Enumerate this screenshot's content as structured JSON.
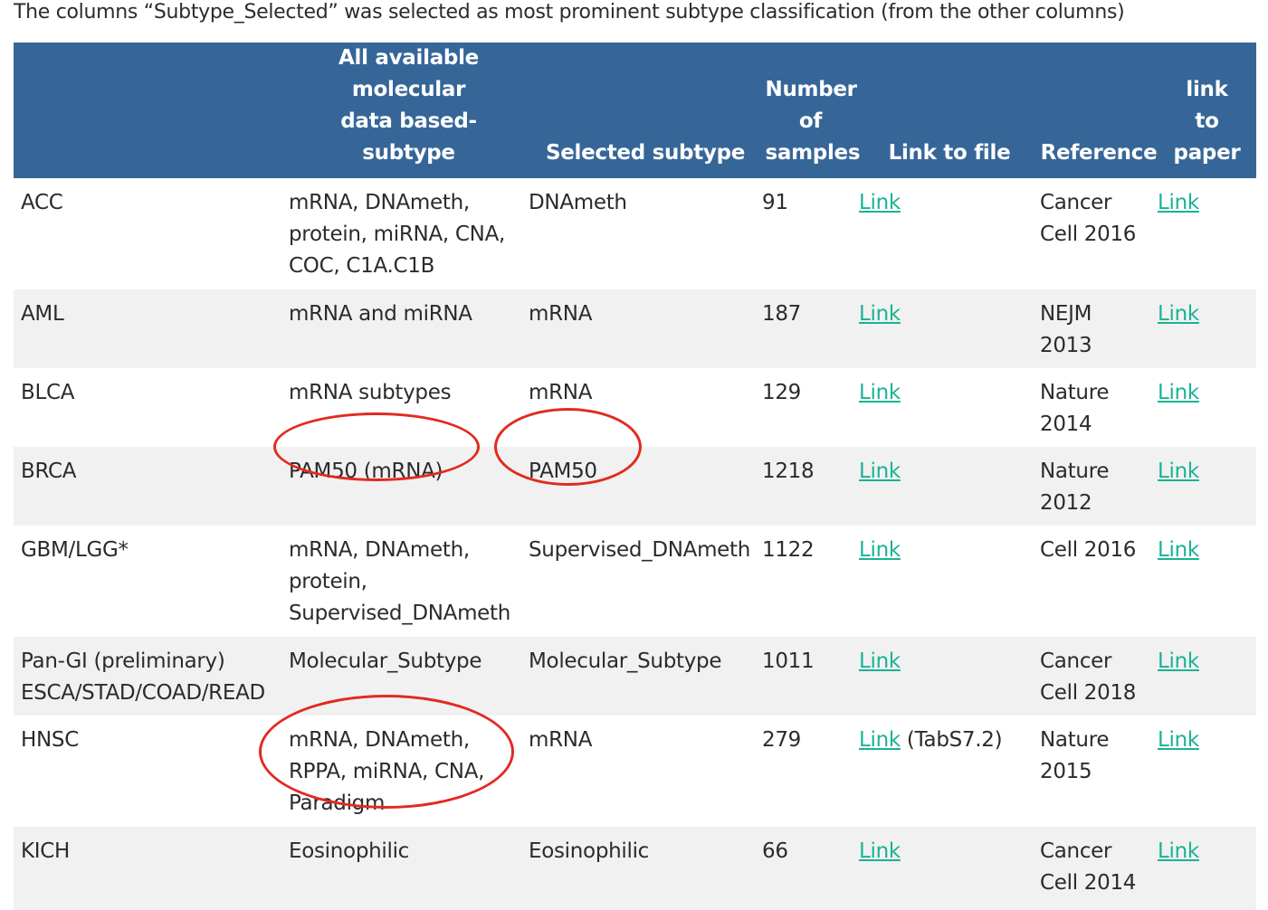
{
  "intro_text": "The columns “Subtype_Selected” was selected as most prominent subtype classification (from the other columns)",
  "table": {
    "headers": [
      "",
      "All available molecular data based-subtype",
      "Selected subtype",
      "Number of samples",
      "Link to file",
      "Reference",
      "link to paper"
    ],
    "rows": [
      {
        "cancer": "ACC",
        "available": "mRNA, DNAmeth, protein, miRNA, CNA, COC, C1A.C1B",
        "selected": "DNAmeth",
        "samples": "91",
        "file_link": "Link",
        "file_note": "",
        "reference": "Cancer Cell 2016",
        "paper_link": "Link"
      },
      {
        "cancer": "AML",
        "available": "mRNA and miRNA",
        "selected": "mRNA",
        "samples": "187",
        "file_link": "Link",
        "file_note": "",
        "reference": "NEJM 2013",
        "paper_link": "Link"
      },
      {
        "cancer": "BLCA",
        "available": "mRNA subtypes",
        "selected": "mRNA",
        "samples": "129",
        "file_link": "Link",
        "file_note": "",
        "reference": "Nature 2014",
        "paper_link": "Link"
      },
      {
        "cancer": "BRCA",
        "available": "PAM50 (mRNA)",
        "selected": "PAM50",
        "samples": "1218",
        "file_link": "Link",
        "file_note": "",
        "reference": "Nature 2012",
        "paper_link": "Link"
      },
      {
        "cancer": "GBM/LGG*",
        "available": "mRNA, DNAmeth, protein, Supervised_DNAmeth",
        "selected": "Supervised_DNAmeth",
        "samples": "1122",
        "file_link": "Link",
        "file_note": "",
        "reference": "Cell 2016",
        "paper_link": "Link"
      },
      {
        "cancer_line1": "Pan-GI (preliminary)",
        "cancer_line2": "ESCA/STAD/COAD/READ",
        "available": "Molecular_Subtype",
        "selected": "Molecular_Subtype",
        "samples": "1011",
        "file_link": "Link",
        "file_note": "",
        "reference": "Cancer Cell 2018",
        "paper_link": "Link"
      },
      {
        "cancer": "HNSC",
        "available": "mRNA, DNAmeth, RPPA, miRNA, CNA, Paradigm",
        "selected": "mRNA",
        "samples": "279",
        "file_link": "Link",
        "file_note": "(TabS7.2)",
        "reference": "Nature 2015",
        "paper_link": "Link"
      },
      {
        "cancer": "KICH",
        "available": "Eosinophilic",
        "selected": "Eosinophilic",
        "samples": "66",
        "file_link": "Link",
        "file_note": "",
        "reference": "Cancer Cell 2014",
        "paper_link": "Link"
      }
    ]
  },
  "annotation_color": "#e22a1f"
}
